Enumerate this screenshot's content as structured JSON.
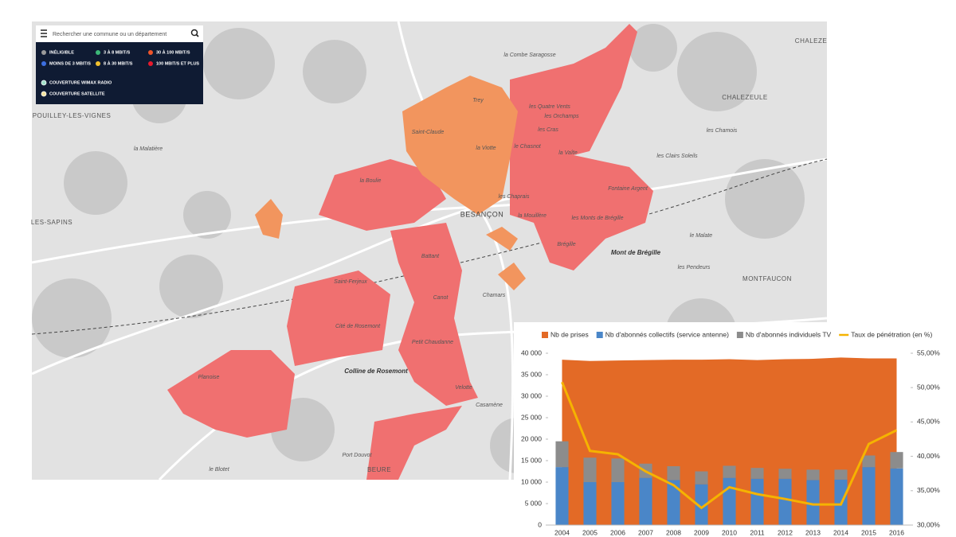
{
  "search": {
    "placeholder": "Rechercher une commune ou un département"
  },
  "legend": [
    "INÉLIGIBLE",
    "3 À 8 MBIT/S",
    "30 À 100 MBIT/S",
    "MOINS DE 3 MBIT/S",
    "8 À 30 MBIT/S",
    "100 MBIT/S ET PLUS",
    "COUVERTURE WIMAX RADIO",
    "COUVERTURE SATELLITE"
  ],
  "places": {
    "city": "BESANÇON",
    "mont": "Mont de Brégille",
    "colline": "Colline de Rosemont",
    "pouilley": "POUILLEY-LES-VIGNES",
    "chalezeule": "CHALEZEULE",
    "montfaucon": "MONTFAUCON",
    "sapins": "LES-SAPINS",
    "chaleze": "CHALEZE",
    "beure": "BEURE",
    "districts": [
      "la Combe Saragosse",
      "les Orchamps",
      "les Quatre Vents",
      "Trey",
      "Saint-Claude",
      "la Viotte",
      "les Cras",
      "le Chasnot",
      "la Vaîte",
      "les Chaprais",
      "la Mouillère",
      "Fontaine Argent",
      "les Monts de Brégille",
      "Brégille",
      "la Boulie",
      "Battant",
      "Saint-Ferjeux",
      "Canot",
      "Cité de Rosemont",
      "Petit Chaudanne",
      "Planoise",
      "Velotte",
      "Chamars",
      "Casamène",
      "la Malatière",
      "les Clairs Soleils",
      "les Chamois",
      "le Malate",
      "les Pendeurs",
      "le Blotet",
      "Port Douvot"
    ]
  },
  "chart_data": {
    "type": "combo",
    "categories": [
      "2004",
      "2005",
      "2006",
      "2007",
      "2008",
      "2009",
      "2010",
      "2011",
      "2012",
      "2013",
      "2014",
      "2015",
      "2016"
    ],
    "series": [
      {
        "name": "Nb de prises",
        "type": "area",
        "color": "#e36a26",
        "values": [
          38500,
          38200,
          38300,
          38400,
          38500,
          38500,
          38600,
          38400,
          38600,
          38700,
          39000,
          38800,
          38800
        ]
      },
      {
        "name": "Nb d'abonnés collectifs (service antenne)",
        "type": "bar",
        "color": "#4a86c8",
        "values": [
          13500,
          10000,
          10000,
          11000,
          10500,
          9500,
          11000,
          10800,
          10800,
          10500,
          10600,
          13500,
          13200
        ]
      },
      {
        "name": "Nb d'abonnés individuels TV",
        "type": "bar",
        "color": "#8c8c8c",
        "values": [
          6000,
          5700,
          5500,
          3300,
          3200,
          3000,
          2800,
          2500,
          2300,
          2400,
          2300,
          2700,
          3800
        ]
      },
      {
        "name": "Taux de pénétration (en %)",
        "type": "line",
        "axis": "y2",
        "color": "#f5b300",
        "values": [
          50.8,
          40.8,
          40.3,
          37.8,
          35.8,
          32.5,
          35.5,
          34.5,
          33.8,
          33.0,
          33.0,
          41.8,
          43.8
        ]
      }
    ],
    "ylim": [
      0,
      40000
    ],
    "yticks": [
      0,
      {
        "value": 5000,
        "label": "5 000"
      },
      {
        "value": 10000,
        "label": "10 000"
      },
      {
        "value": 15000,
        "label": "15 000"
      },
      {
        "value": 20000,
        "label": "20 000"
      },
      {
        "value": 25000,
        "label": "25 000"
      },
      {
        "value": 30000,
        "label": "30 000"
      },
      {
        "value": 35000,
        "label": "35 000"
      },
      {
        "value": 40000,
        "label": "40 000"
      }
    ],
    "y2lim": [
      30,
      55
    ],
    "y2ticks": [
      {
        "value": 30,
        "label": "30,00%"
      },
      {
        "value": 35,
        "label": "35,00%"
      },
      {
        "value": 40,
        "label": "40,00%"
      },
      {
        "value": 45,
        "label": "45,00%"
      },
      {
        "value": 50,
        "label": "50,00%"
      },
      {
        "value": 55,
        "label": "55,00%"
      }
    ],
    "legend_position": "top"
  }
}
